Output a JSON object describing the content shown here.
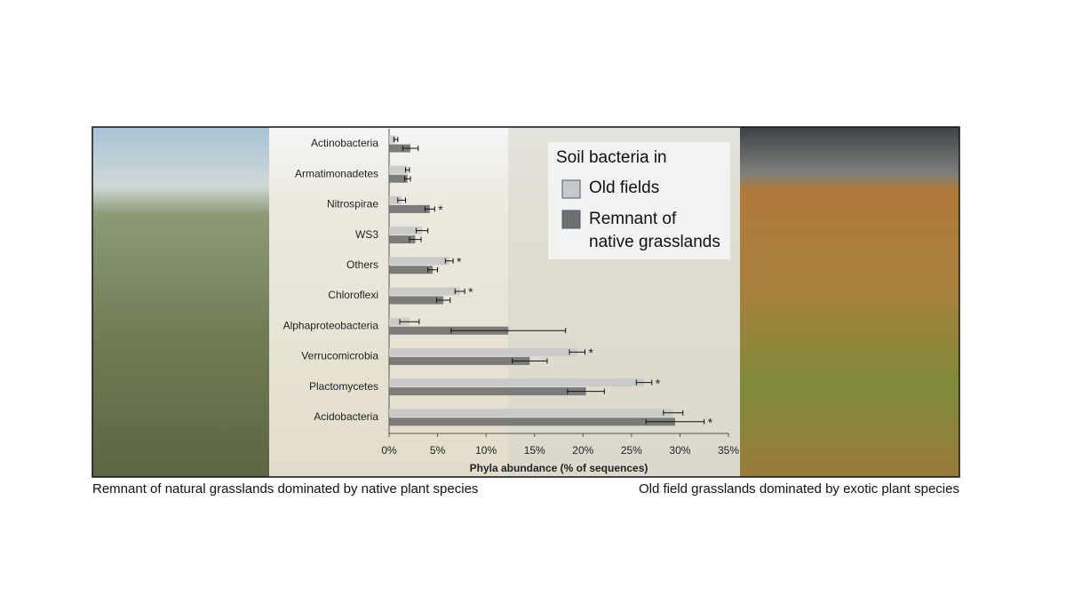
{
  "chart_data": {
    "type": "hbar",
    "x_label": "Phyla abundance (% of sequences)",
    "legend_title": "Soil bacteria in",
    "captions": [
      "Remnant of natural grasslands dominated by native plant species",
      "Old field grasslands dominated by exotic plant species"
    ],
    "categories": [
      "Actinobacteria",
      "Armatimonadetes",
      "Nitrospirae",
      "WS3",
      "Others",
      "Chloroflexi",
      "Alphaproteobacteria",
      "Verrucomicrobia",
      "Plactomycetes",
      "Acidobacteria"
    ],
    "series": [
      {
        "name": "Old fields",
        "color": "#c8c8c8",
        "values": [
          0.7,
          1.9,
          1.3,
          3.4,
          6.2,
          7.3,
          2.1,
          19.4,
          26.3,
          29.3
        ],
        "errors": [
          0.2,
          0.2,
          0.4,
          0.6,
          0.4,
          0.5,
          1.0,
          0.8,
          0.8,
          1.0
        ],
        "significant": [
          false,
          false,
          false,
          false,
          true,
          true,
          false,
          true,
          true,
          false
        ]
      },
      {
        "name": "Remnant of native grasslands",
        "color": "#707070",
        "values": [
          2.2,
          1.9,
          4.2,
          2.7,
          4.5,
          5.6,
          12.3,
          14.5,
          20.3,
          29.5
        ],
        "errors": [
          0.8,
          0.3,
          0.5,
          0.6,
          0.5,
          0.7,
          5.9,
          1.8,
          1.9,
          3.0
        ],
        "significant": [
          false,
          false,
          true,
          false,
          false,
          false,
          false,
          false,
          false,
          true
        ]
      }
    ],
    "significance_marker": "*",
    "xlim": [
      0,
      35
    ],
    "xticks": [
      {
        "value": 0,
        "label": "0%"
      },
      {
        "value": 5,
        "label": "5%"
      },
      {
        "value": 10,
        "label": "10%"
      },
      {
        "value": 15,
        "label": "15%"
      },
      {
        "value": 20,
        "label": "20%"
      },
      {
        "value": 25,
        "label": "25%"
      },
      {
        "value": 30,
        "label": "30%"
      },
      {
        "value": 35,
        "label": "35%"
      }
    ]
  }
}
